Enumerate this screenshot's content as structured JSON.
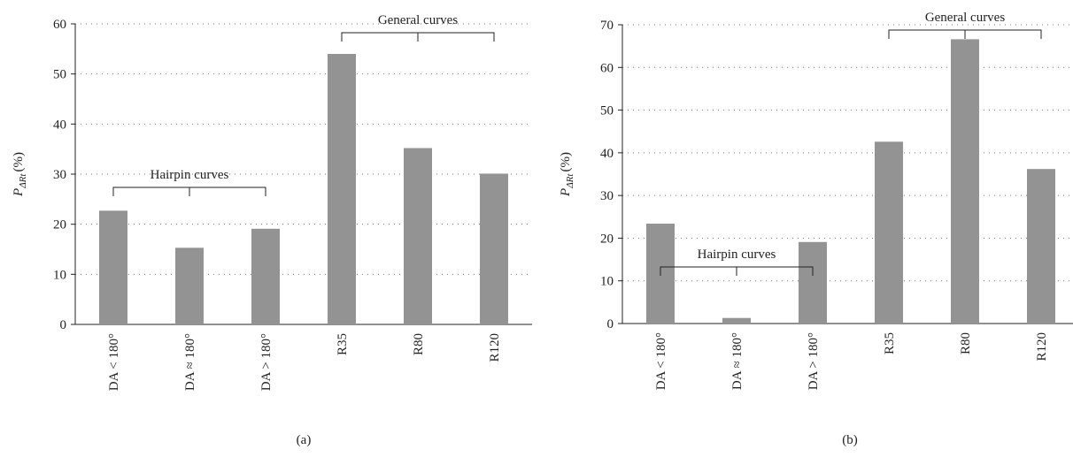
{
  "chart_data": [
    {
      "type": "bar",
      "caption": "(a)",
      "y_label": {
        "base": "P",
        "sub": "ΔRt",
        "unit": "(%)"
      },
      "categories": [
        "DA < 180°",
        "DA ≈ 180°",
        "DA > 180°",
        "R35",
        "R80",
        "R120"
      ],
      "values": [
        22.7,
        15.3,
        19.1,
        54,
        35.2,
        30.1
      ],
      "color": "#939393",
      "ylim": [
        0,
        60
      ],
      "yticks": [
        0,
        10,
        20,
        30,
        40,
        50,
        60
      ],
      "grid": true,
      "annotations": [
        "Hairpin curves",
        "General curves"
      ]
    },
    {
      "type": "bar",
      "caption": "(b)",
      "y_label": {
        "base": "P",
        "sub": "ΔRt",
        "unit": "(%)"
      },
      "categories": [
        "DA < 180°",
        "DA ≈ 180°",
        "DA > 180°",
        "R35",
        "R80",
        "R120"
      ],
      "values": [
        23.4,
        1.3,
        19.1,
        42.6,
        66.6,
        36.2
      ],
      "color": "#939393",
      "ylim": [
        0,
        70
      ],
      "yticks": [
        0,
        10,
        20,
        30,
        40,
        50,
        60,
        70
      ],
      "grid": true,
      "annotations": [
        "Hairpin curves",
        "General curves"
      ]
    }
  ]
}
